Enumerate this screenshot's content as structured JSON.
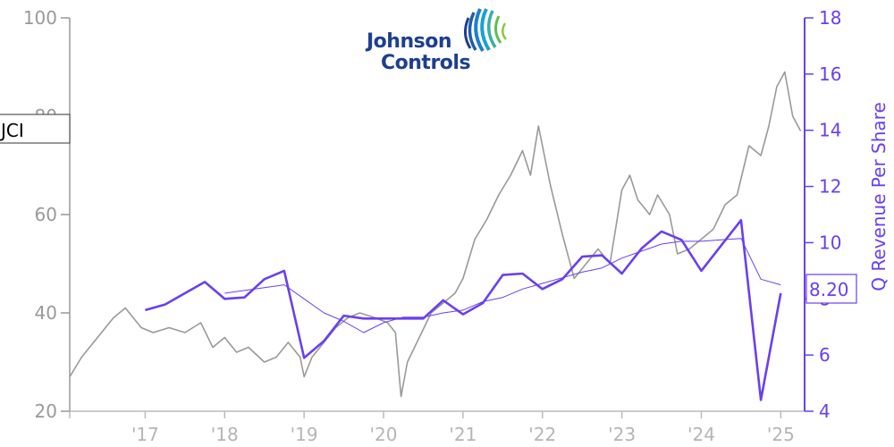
{
  "ticker": "JCI",
  "logo": {
    "line1": "Johnson",
    "line2": "Controls"
  },
  "colors": {
    "price": "#999999",
    "revenue": "#6a3ff0",
    "trend": "#6a3ff0",
    "axis_left": "#999999",
    "axis_x": "#bbbbbb"
  },
  "chart_data": {
    "type": "line",
    "title": "",
    "xlabel": "",
    "ylabel_left": "",
    "ylabel_right": "Q Revenue Per Share",
    "x_tick_labels": [
      "'17",
      "'18",
      "'19",
      "'20",
      "'21",
      "'22",
      "'23",
      "'24",
      "'25"
    ],
    "x_tick_years": [
      2017,
      2018,
      2019,
      2020,
      2021,
      2022,
      2023,
      2024,
      2025
    ],
    "xlim": [
      2016.05,
      2025.3
    ],
    "y_left_lim": [
      20,
      100
    ],
    "y_left_ticks": [
      20,
      40,
      60,
      80,
      100
    ],
    "y_right_lim": [
      4,
      18
    ],
    "y_right_ticks": [
      4,
      6,
      8,
      10,
      12,
      14,
      16,
      18
    ],
    "last_value_label": "8.20",
    "series": [
      {
        "axis": "left",
        "x": [
          2016.05,
          2016.2,
          2016.4,
          2016.6,
          2016.75,
          2016.95,
          2017.1,
          2017.3,
          2017.5,
          2017.7,
          2017.85,
          2018.0,
          2018.15,
          2018.3,
          2018.5,
          2018.65,
          2018.8,
          2018.95,
          2019.0,
          2019.1,
          2019.25,
          2019.4,
          2019.55,
          2019.7,
          2019.9,
          2020.05,
          2020.15,
          2020.22,
          2020.3,
          2020.45,
          2020.6,
          2020.75,
          2020.9,
          2021.0,
          2021.15,
          2021.3,
          2021.45,
          2021.6,
          2021.75,
          2021.85,
          2021.95,
          2022.1,
          2022.25,
          2022.4,
          2022.55,
          2022.7,
          2022.85,
          2023.0,
          2023.1,
          2023.2,
          2023.35,
          2023.45,
          2023.6,
          2023.7,
          2023.85,
          2024.0,
          2024.15,
          2024.3,
          2024.45,
          2024.6,
          2024.75,
          2024.85,
          2024.95,
          2025.05,
          2025.15,
          2025.25
        ],
        "values": [
          27,
          31,
          35,
          39,
          41,
          37,
          36,
          37,
          36,
          38,
          33,
          35,
          32,
          33,
          30,
          31,
          34,
          31,
          27,
          31,
          34,
          37,
          39,
          40,
          39,
          38,
          36,
          23,
          30,
          35,
          40,
          42,
          44,
          47,
          55,
          59,
          64,
          68,
          73,
          68,
          78,
          66,
          56,
          47,
          50,
          53,
          50,
          65,
          68,
          63,
          60,
          64,
          60,
          52,
          53,
          55,
          57,
          62,
          64,
          74,
          72,
          78,
          86,
          89,
          80,
          77
        ]
      },
      {
        "name": "Q Revenue Per Share",
        "axis": "right",
        "x": [
          2017.0,
          2017.25,
          2017.75,
          2018.0,
          2018.25,
          2018.5,
          2018.75,
          2019.0,
          2019.25,
          2019.5,
          2019.75,
          2020.0,
          2020.25,
          2020.5,
          2020.75,
          2021.0,
          2021.25,
          2021.5,
          2021.75,
          2022.0,
          2022.25,
          2022.5,
          2022.75,
          2023.0,
          2023.25,
          2023.5,
          2023.75,
          2024.0,
          2024.25,
          2024.5,
          2024.75,
          2025.0
        ],
        "values": [
          7.6,
          7.8,
          8.6,
          8.0,
          8.05,
          8.7,
          9.0,
          5.9,
          6.5,
          7.4,
          7.3,
          7.3,
          7.3,
          7.3,
          7.95,
          7.45,
          7.85,
          8.85,
          8.9,
          8.35,
          8.7,
          9.5,
          9.55,
          8.9,
          9.8,
          10.4,
          10.1,
          9.0,
          9.9,
          10.8,
          4.4,
          8.2
        ]
      },
      {
        "axis": "right",
        "x": [
          2018.0,
          2018.25,
          2018.5,
          2018.75,
          2019.0,
          2019.25,
          2019.5,
          2019.75,
          2020.0,
          2020.25,
          2020.5,
          2020.75,
          2021.0,
          2021.25,
          2021.5,
          2021.75,
          2022.0,
          2022.25,
          2022.5,
          2022.75,
          2023.0,
          2023.25,
          2023.5,
          2023.75,
          2024.0,
          2024.25,
          2024.5,
          2024.75,
          2025.0
        ],
        "values": [
          8.2,
          8.3,
          8.4,
          8.5,
          8.0,
          7.5,
          7.2,
          6.8,
          7.15,
          7.35,
          7.35,
          7.5,
          7.6,
          7.9,
          8.05,
          8.35,
          8.55,
          8.75,
          8.95,
          9.1,
          9.45,
          9.7,
          9.95,
          10.05,
          10.05,
          10.1,
          10.15,
          8.7,
          8.5
        ]
      }
    ]
  }
}
